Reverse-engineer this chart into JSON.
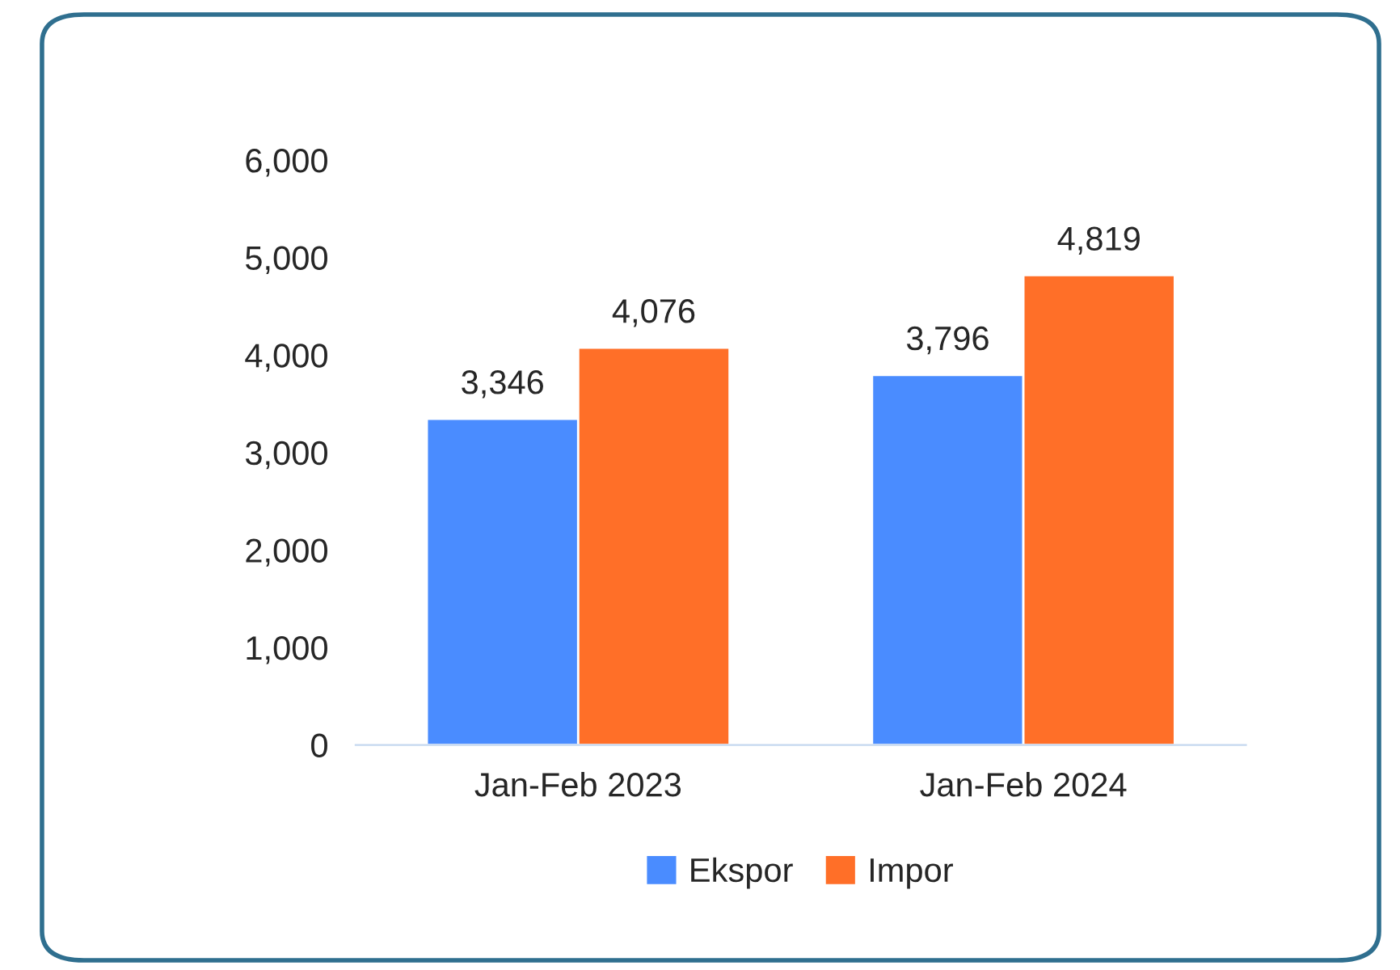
{
  "chart_data": {
    "type": "bar",
    "categories": [
      "Jan-Feb 2023",
      "Jan-Feb 2024"
    ],
    "series": [
      {
        "name": "Ekspor",
        "color": "#4a8cff",
        "values": [
          3346,
          3796
        ],
        "value_labels": [
          "3,346",
          "3,796"
        ]
      },
      {
        "name": "Impor",
        "color": "#ff6f28",
        "values": [
          4076,
          4819
        ],
        "value_labels": [
          "4,076",
          "4,819"
        ]
      }
    ],
    "ylim": [
      0,
      6000
    ],
    "yticks": [
      {
        "value": 0,
        "label": "0"
      },
      {
        "value": 1000,
        "label": "1,000"
      },
      {
        "value": 2000,
        "label": "2,000"
      },
      {
        "value": 3000,
        "label": "3,000"
      },
      {
        "value": 4000,
        "label": "4,000"
      },
      {
        "value": 5000,
        "label": "5,000"
      },
      {
        "value": 6000,
        "label": "6,000"
      }
    ],
    "grid": false,
    "legend": "bottom"
  }
}
